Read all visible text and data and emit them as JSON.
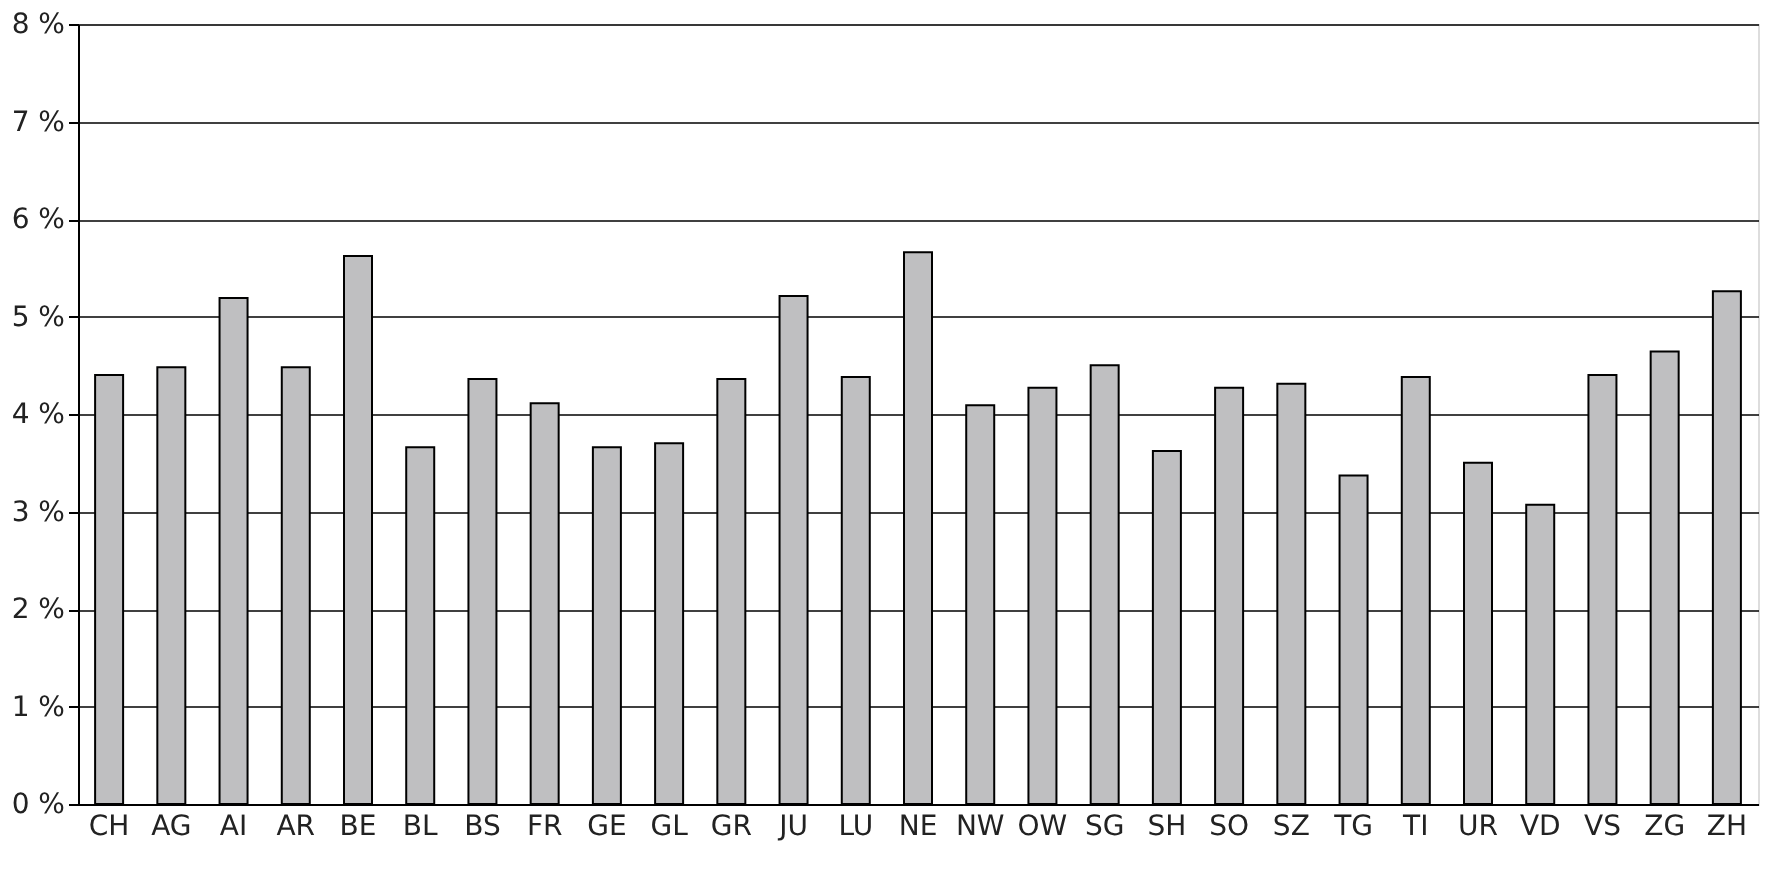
{
  "chart_data": {
    "type": "bar",
    "categories": [
      "CH",
      "AG",
      "AI",
      "AR",
      "BE",
      "BL",
      "BS",
      "FR",
      "GE",
      "GL",
      "GR",
      "JU",
      "LU",
      "NE",
      "NW",
      "OW",
      "SG",
      "SH",
      "SO",
      "SZ",
      "TG",
      "TI",
      "UR",
      "VD",
      "VS",
      "ZG",
      "ZH"
    ],
    "values": [
      4.4,
      4.48,
      5.19,
      4.48,
      5.62,
      3.66,
      4.36,
      4.11,
      3.66,
      3.7,
      4.36,
      5.21,
      4.38,
      5.66,
      4.09,
      4.27,
      4.5,
      3.62,
      4.27,
      4.31,
      3.37,
      4.38,
      3.5,
      3.07,
      4.4,
      4.64,
      5.26
    ],
    "color": "#bfbfc1",
    "ylim": [
      0,
      8
    ],
    "yticks": [
      {
        "value": 0,
        "label": "0 %"
      },
      {
        "value": 1,
        "label": "1 %"
      },
      {
        "value": 2,
        "label": "2 %"
      },
      {
        "value": 3,
        "label": "3 %"
      },
      {
        "value": 4,
        "label": "4 %"
      },
      {
        "value": 5,
        "label": "5 %"
      },
      {
        "value": 6,
        "label": "6 %"
      },
      {
        "value": 7,
        "label": "7 %"
      },
      {
        "value": 8,
        "label": "8 %"
      }
    ],
    "grid": "y"
  }
}
